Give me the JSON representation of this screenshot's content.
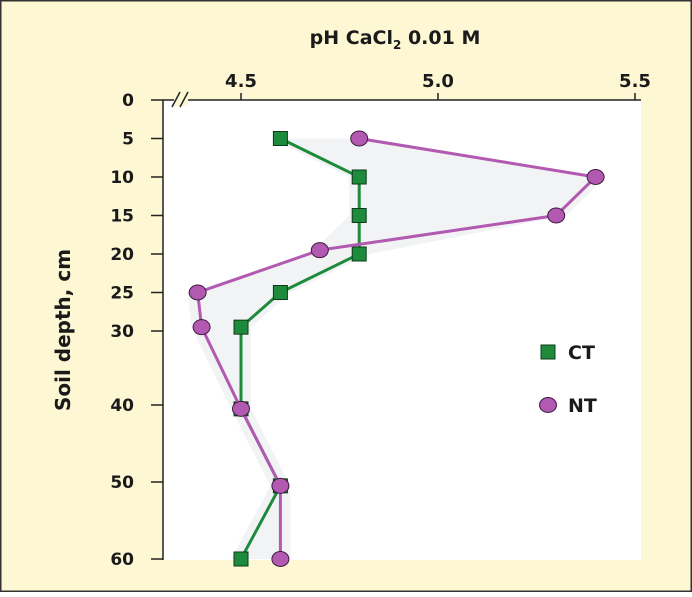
{
  "chart_data": {
    "type": "line",
    "orientation": "vertical-profile",
    "title": "pH CaCl",
    "title_subscript": "2",
    "title_suffix": " 0.01 M",
    "xlabel": "pH CaCl2 0.01 M",
    "ylabel": "Soil depth, cm",
    "xlim": [
      4.28,
      5.5
    ],
    "ylim": [
      0,
      60
    ],
    "x_ticks": [
      4.5,
      5.0,
      5.5
    ],
    "x_tick_labels": [
      "4.5",
      "5.0",
      "5.5"
    ],
    "y_ticks": [
      0,
      5,
      10,
      15,
      20,
      25,
      30,
      40,
      50,
      60
    ],
    "y_tick_labels": [
      "0",
      "5",
      "10",
      "15",
      "20",
      "25",
      "30",
      "40",
      "50",
      "60"
    ],
    "axis_break": true,
    "grid": false,
    "legend_position": "right",
    "series": [
      {
        "name": "CT",
        "marker": "square",
        "color": "#1e8a3c",
        "depth": [
          5,
          10,
          15,
          20,
          25,
          29.5,
          40.5,
          50.5,
          60
        ],
        "ph": [
          4.6,
          4.8,
          4.8,
          4.8,
          4.6,
          4.5,
          4.5,
          4.6,
          4.5
        ]
      },
      {
        "name": "NT",
        "marker": "circle",
        "color": "#b259b2",
        "depth": [
          5,
          10,
          15,
          19.5,
          25,
          29.5,
          40.5,
          50.5,
          60
        ],
        "ph": [
          4.8,
          5.4,
          5.3,
          4.7,
          4.39,
          4.4,
          4.5,
          4.6,
          4.6
        ]
      }
    ],
    "colors": {
      "background": "#fdf7d3",
      "plot_background": "#ffffff",
      "border": "#333333"
    }
  }
}
